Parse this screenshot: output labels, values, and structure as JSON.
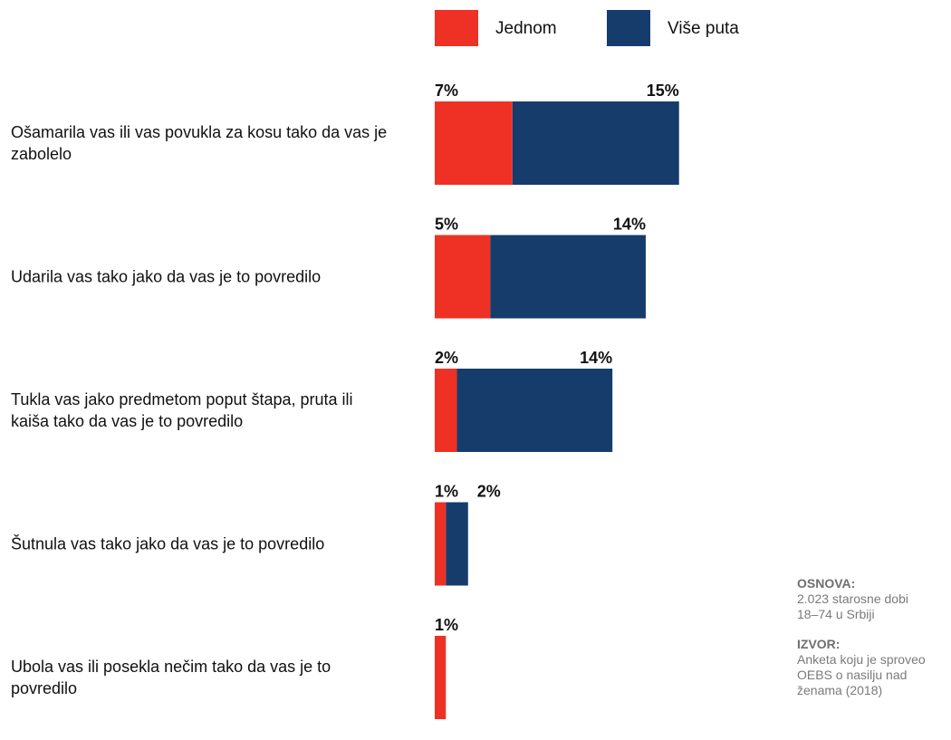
{
  "chart_data": {
    "type": "bar",
    "orientation": "horizontal",
    "stacked": true,
    "title": "",
    "xlabel": "",
    "ylabel": "",
    "grid": false,
    "legend_position": "top",
    "xlim": [
      0,
      23
    ],
    "unit": "%",
    "categories": [
      [
        "Ošamarila vas ili vas povukla za kosu tako da vas je",
        "zabolelo"
      ],
      [
        "Udarila vas tako jako da vas je to povredilo"
      ],
      [
        "Tukla vas jako predmetom poput štapa, pruta ili",
        "kaiša tako da vas je to povredilo"
      ],
      [
        "Šutnula vas tako jako da vas je to povredilo"
      ],
      [
        "Ubola vas ili posekla nečim tako da vas je to",
        "povredilo"
      ]
    ],
    "series": [
      {
        "name": "Jednom",
        "color": "#ee3124",
        "values": [
          7,
          5,
          2,
          1,
          1
        ],
        "labels": [
          "7%",
          "5%",
          "2%",
          "1%",
          "1%"
        ]
      },
      {
        "name": "Više puta",
        "color": "#163c6c",
        "values": [
          15,
          14,
          14,
          2,
          0
        ],
        "labels": [
          "15%",
          "14%",
          "14%",
          "2%",
          ""
        ]
      }
    ]
  },
  "notes": {
    "basis_heading": "OSNOVA:",
    "basis_lines": [
      "2.023 starosne dobi",
      "18–74 u Srbiji"
    ],
    "source_heading": "IZVOR:",
    "source_lines": [
      "Anketa koju je sproveo",
      "OEBS o nasilju nad",
      "ženama (2018)"
    ]
  }
}
